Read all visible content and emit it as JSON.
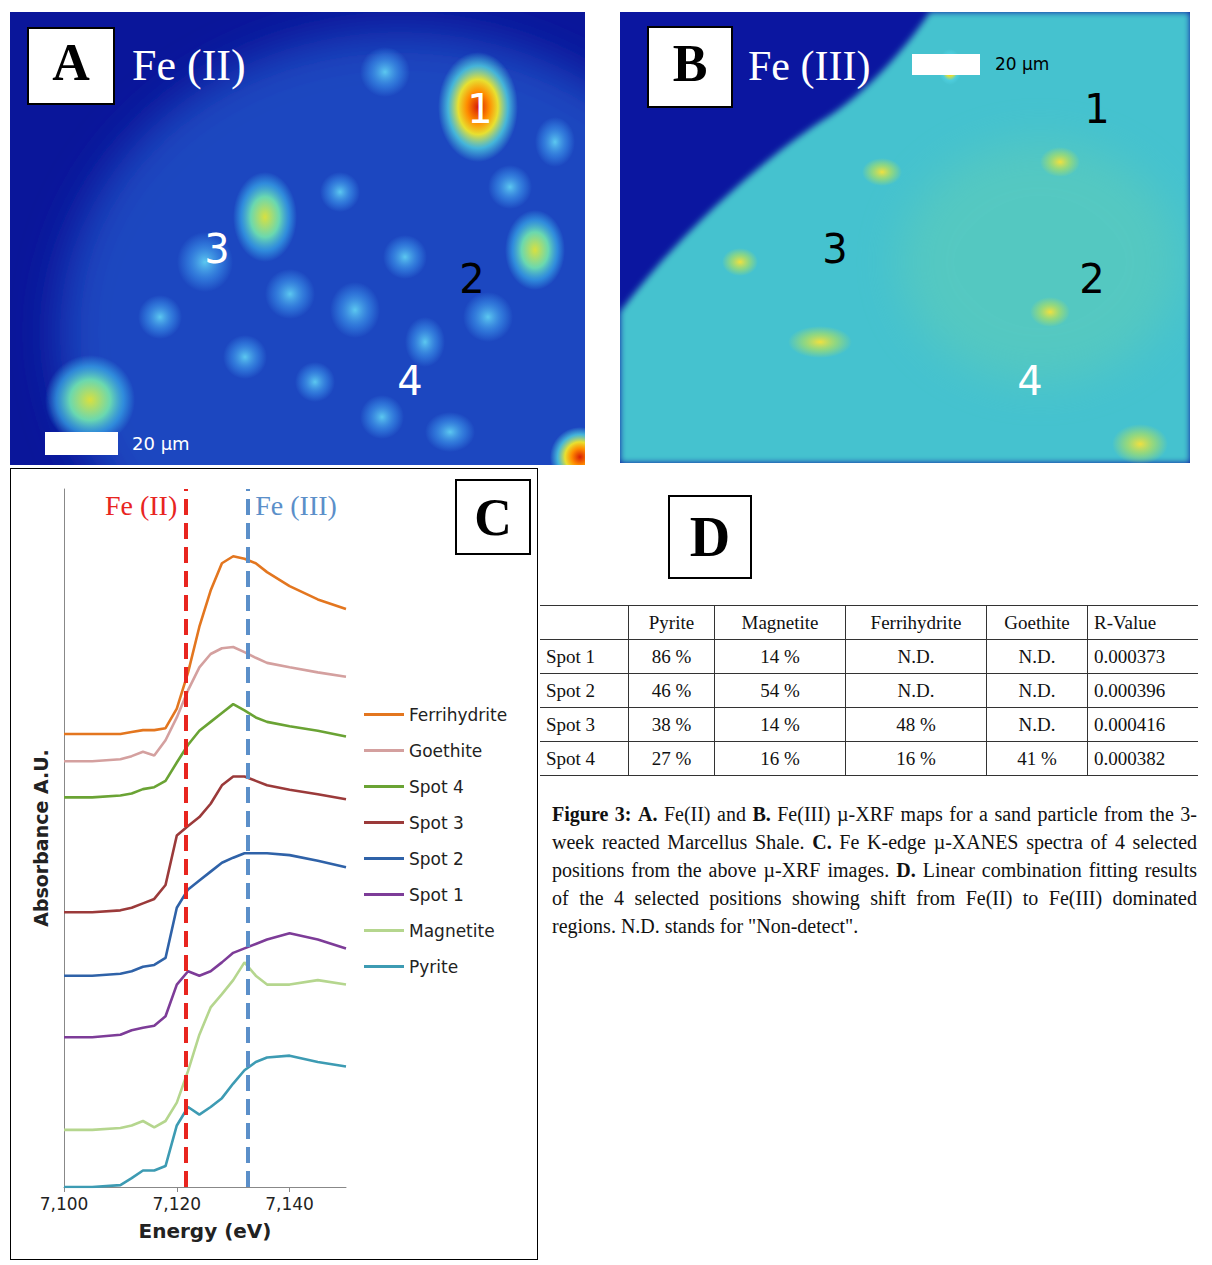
{
  "chart_data": {
    "type": "line",
    "xlabel": "Energy (eV)",
    "ylabel": "Absorbance A.U.",
    "x": [
      7100,
      7105,
      7110,
      7112,
      7114,
      7116,
      7118,
      7120,
      7122,
      7124,
      7126,
      7128,
      7130,
      7132,
      7134,
      7136,
      7140,
      7145,
      7150
    ],
    "xlim": [
      7100,
      7150
    ],
    "xticks": [
      7100,
      7120,
      7140
    ],
    "ylim": [
      0,
      11
    ],
    "tick_labels": "x",
    "grid": false,
    "legend": "right",
    "annotations": [
      {
        "text": "Fe (II)",
        "x": 7121.5,
        "color": "#e8251f",
        "line_style": "dashed"
      },
      {
        "text": "Fe (III)",
        "x": 7132.5,
        "color": "#5b8fc9",
        "line_style": "dashed"
      }
    ],
    "series": [
      {
        "name": "Ferrihydrite",
        "color": "#e3761f",
        "values": [
          7.14,
          7.14,
          7.14,
          7.17,
          7.2,
          7.2,
          7.23,
          7.54,
          8.11,
          8.83,
          9.4,
          9.83,
          9.94,
          9.9,
          9.83,
          9.69,
          9.47,
          9.26,
          9.11
        ]
      },
      {
        "name": "Goethite",
        "color": "#d4a09f",
        "values": [
          6.71,
          6.71,
          6.74,
          6.79,
          6.86,
          6.8,
          7.04,
          7.4,
          7.83,
          8.19,
          8.4,
          8.49,
          8.51,
          8.43,
          8.34,
          8.26,
          8.19,
          8.11,
          8.04
        ]
      },
      {
        "name": "Spot 4",
        "color": "#6aa334",
        "values": [
          6.14,
          6.14,
          6.17,
          6.2,
          6.27,
          6.3,
          6.4,
          6.69,
          6.97,
          7.19,
          7.33,
          7.47,
          7.61,
          7.51,
          7.4,
          7.33,
          7.26,
          7.19,
          7.1
        ]
      },
      {
        "name": "Spot 3",
        "color": "#9b3a3a",
        "values": [
          4.33,
          4.33,
          4.36,
          4.4,
          4.47,
          4.54,
          4.76,
          5.54,
          5.69,
          5.83,
          6.04,
          6.33,
          6.47,
          6.47,
          6.4,
          6.33,
          6.26,
          6.19,
          6.11
        ]
      },
      {
        "name": "Spot 2",
        "color": "#2f62a8",
        "values": [
          3.33,
          3.33,
          3.36,
          3.4,
          3.47,
          3.5,
          3.61,
          4.4,
          4.69,
          4.83,
          4.97,
          5.11,
          5.19,
          5.26,
          5.26,
          5.26,
          5.23,
          5.14,
          5.04
        ]
      },
      {
        "name": "Spot 1",
        "color": "#7d3c98",
        "values": [
          2.36,
          2.36,
          2.4,
          2.47,
          2.51,
          2.54,
          2.69,
          3.19,
          3.4,
          3.33,
          3.4,
          3.54,
          3.69,
          3.76,
          3.83,
          3.9,
          4.0,
          3.9,
          3.76
        ]
      },
      {
        "name": "Magnetite",
        "color": "#b5d68e",
        "values": [
          0.9,
          0.9,
          0.93,
          0.97,
          1.04,
          0.94,
          1.04,
          1.33,
          1.83,
          2.4,
          2.83,
          3.04,
          3.26,
          3.54,
          3.33,
          3.19,
          3.19,
          3.26,
          3.19
        ]
      },
      {
        "name": "Pyrite",
        "color": "#3d9bb3",
        "values": [
          0,
          0,
          0.03,
          0.14,
          0.26,
          0.26,
          0.33,
          0.97,
          1.26,
          1.14,
          1.26,
          1.4,
          1.63,
          1.84,
          1.97,
          2.04,
          2.07,
          1.97,
          1.9
        ]
      }
    ]
  },
  "panels": {
    "A": {
      "label": "A",
      "title": "Fe (II)",
      "scale_bar": "20 µm",
      "spots": [
        {
          "label": "1",
          "color": "#ffffff"
        },
        {
          "label": "2",
          "color": "#000000"
        },
        {
          "label": "3",
          "color": "#ffffff"
        },
        {
          "label": "4",
          "color": "#ffffff"
        }
      ]
    },
    "B": {
      "label": "B",
      "title": "Fe (III)",
      "scale_bar": "20 µm",
      "spots": [
        {
          "label": "1",
          "color": "#000000"
        },
        {
          "label": "2",
          "color": "#000000"
        },
        {
          "label": "3",
          "color": "#000000"
        },
        {
          "label": "4",
          "color": "#ffffff"
        }
      ]
    },
    "C": {
      "label": "C"
    },
    "D": {
      "label": "D",
      "table": {
        "header": [
          "",
          "Pyrite",
          "Magnetite",
          "Ferrihydrite",
          "Goethite",
          "R-Value"
        ],
        "rows": [
          [
            "Spot 1",
            "86 %",
            "14 %",
            "N.D.",
            "N.D.",
            "0.000373"
          ],
          [
            "Spot 2",
            "46 %",
            "54 %",
            "N.D.",
            "N.D.",
            "0.000396"
          ],
          [
            "Spot 3",
            "38 %",
            "14 %",
            "48 %",
            "N.D.",
            "0.000416"
          ],
          [
            "Spot 4",
            "27 %",
            "16 %",
            "16 %",
            "41 %",
            "0.000382"
          ]
        ]
      }
    }
  },
  "caption": {
    "figure": "Figure 3:",
    "parts": [
      {
        "label": "A.",
        "text": "Fe(II) and"
      },
      {
        "label": "B.",
        "text": "Fe(III) µ-XRF maps for a sand particle from the 3-week reacted Marcellus Shale."
      },
      {
        "label": "C.",
        "text": "Fe K-edge µ-XANES spectra of 4 selected positions from the above µ-XRF images."
      },
      {
        "label": "D.",
        "text": "Linear combination fitting results of the 4 selected positions showing shift from Fe(II) to Fe(III) dominated regions. N.D. stands for \"Non-detect\"."
      }
    ]
  }
}
